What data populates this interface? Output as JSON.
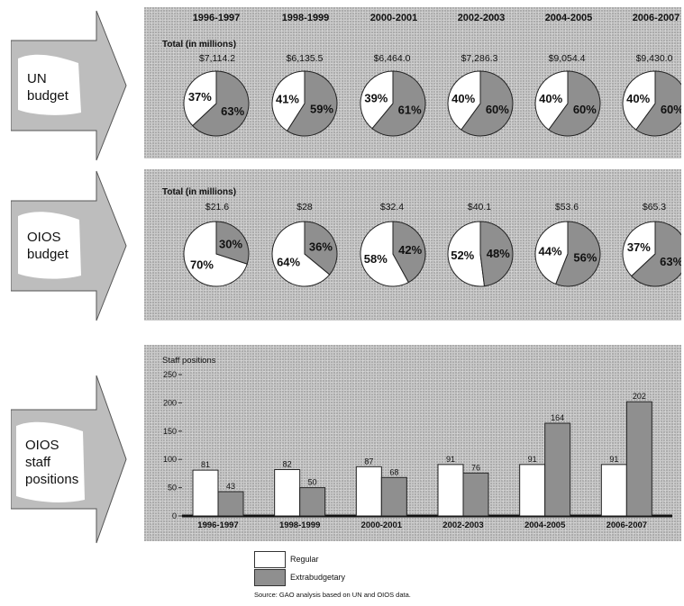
{
  "periods": [
    "1996-1997",
    "1998-1999",
    "2000-2001",
    "2002-2003",
    "2004-2005",
    "2006-2007"
  ],
  "arrows": {
    "un_budget": "UN\nbudget",
    "oios_budget": "OIOS\nbudget",
    "oios_staff": "OIOS\nstaff\npositions"
  },
  "un_budget": {
    "total_label": "Total (in millions)",
    "amounts": [
      "$7,114.2",
      "$6,135.5",
      "$6,464.0",
      "$7,286.3",
      "$9,054.4",
      "$9,430.0"
    ]
  },
  "oios_budget": {
    "total_label": "Total (in millions)",
    "amounts": [
      "$21.6",
      "$28",
      "$32.4",
      "$40.1",
      "$53.6",
      "$65.3"
    ]
  },
  "staff": {
    "axis_label": "Staff positions"
  },
  "legend": {
    "regular": "Regular",
    "extrabudgetary": "Extrabudgetary"
  },
  "source": "Source: GAO analysis based on UN and OIOS data.",
  "colors": {
    "regular": "#ffffff",
    "extrabudgetary": "#8f8f8f",
    "panel": "#c9c9c9"
  },
  "chart_data": [
    {
      "type": "pie",
      "categories": [
        "1996-1997",
        "1998-1999",
        "2000-2001",
        "2002-2003",
        "2004-2005",
        "2006-2007"
      ],
      "series": [
        {
          "name": "Regular",
          "values": [
            37,
            41,
            39,
            40,
            40,
            40
          ],
          "labels": [
            "37%",
            "41%",
            "39%",
            "40%",
            "40%",
            "40%"
          ]
        },
        {
          "name": "Extrabudgetary",
          "values": [
            63,
            59,
            61,
            60,
            60,
            60
          ],
          "labels": [
            "63%",
            "59%",
            "61%",
            "60%",
            "60%",
            "60%"
          ]
        }
      ]
    },
    {
      "type": "pie",
      "categories": [
        "1996-1997",
        "1998-1999",
        "2000-2001",
        "2002-2003",
        "2004-2005",
        "2006-2007"
      ],
      "series": [
        {
          "name": "Regular",
          "values": [
            70,
            64,
            58,
            52,
            44,
            37
          ],
          "labels": [
            "70%",
            "64%",
            "58%",
            "52%",
            "44%",
            "37%"
          ]
        },
        {
          "name": "Extrabudgetary",
          "values": [
            30,
            36,
            42,
            48,
            56,
            63
          ],
          "labels": [
            "30%",
            "36%",
            "42%",
            "48%",
            "56%",
            "63%"
          ]
        }
      ]
    },
    {
      "type": "bar",
      "categories": [
        "1996-1997",
        "1998-1999",
        "2000-2001",
        "2002-2003",
        "2004-2005",
        "2006-2007"
      ],
      "series": [
        {
          "name": "Regular",
          "values": [
            81,
            82,
            87,
            91,
            91,
            91
          ]
        },
        {
          "name": "Extrabudgetary",
          "values": [
            43,
            50,
            68,
            76,
            164,
            202
          ]
        }
      ],
      "ylim": [
        0,
        250
      ],
      "yticks": [
        0,
        50,
        100,
        150,
        200,
        250
      ],
      "ytick_labels": [
        "0",
        "50",
        "100",
        "150",
        "200",
        "250"
      ]
    }
  ]
}
